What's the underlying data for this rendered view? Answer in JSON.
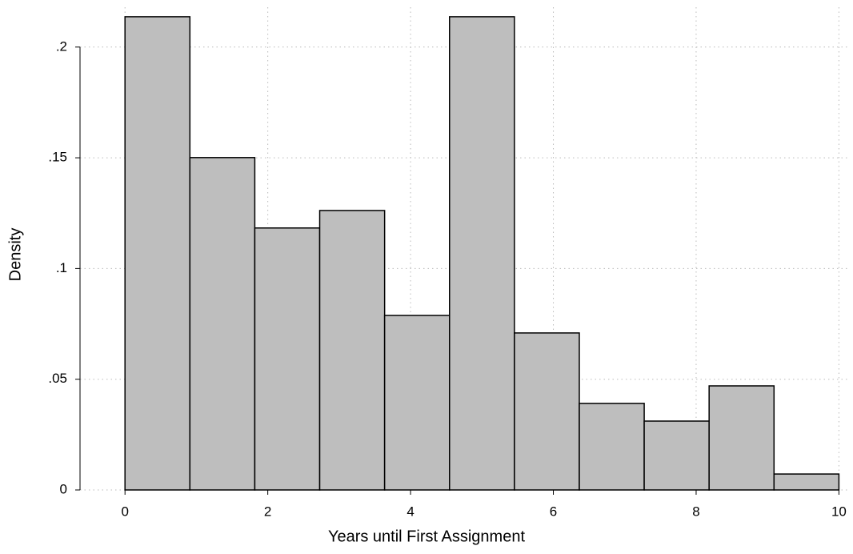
{
  "chart_data": {
    "type": "histogram",
    "x_label": "Years until First Assignment",
    "y_label": "Density",
    "bins": [
      0,
      0.9091,
      1.8182,
      2.7273,
      3.6364,
      4.5455,
      5.4545,
      6.3636,
      7.2727,
      8.1818,
      9.0909,
      10
    ],
    "values": [
      0.2137,
      0.1501,
      0.1183,
      0.1262,
      0.0788,
      0.2137,
      0.0709,
      0.0391,
      0.0311,
      0.047,
      0.0072
    ],
    "color": "#bebebe",
    "xlim": [
      -0.63,
      10.13
    ],
    "ylim": [
      0,
      0.218
    ],
    "xticks": [
      0,
      2,
      4,
      6,
      8,
      10
    ],
    "yticks": [
      0,
      {
        "value": 0.05,
        "label": ".05"
      },
      {
        "value": 0.1,
        "label": ".1"
      },
      {
        "value": 0.15,
        "label": ".15"
      },
      {
        "value": 0.2,
        "label": ".2"
      }
    ],
    "grid": true
  }
}
